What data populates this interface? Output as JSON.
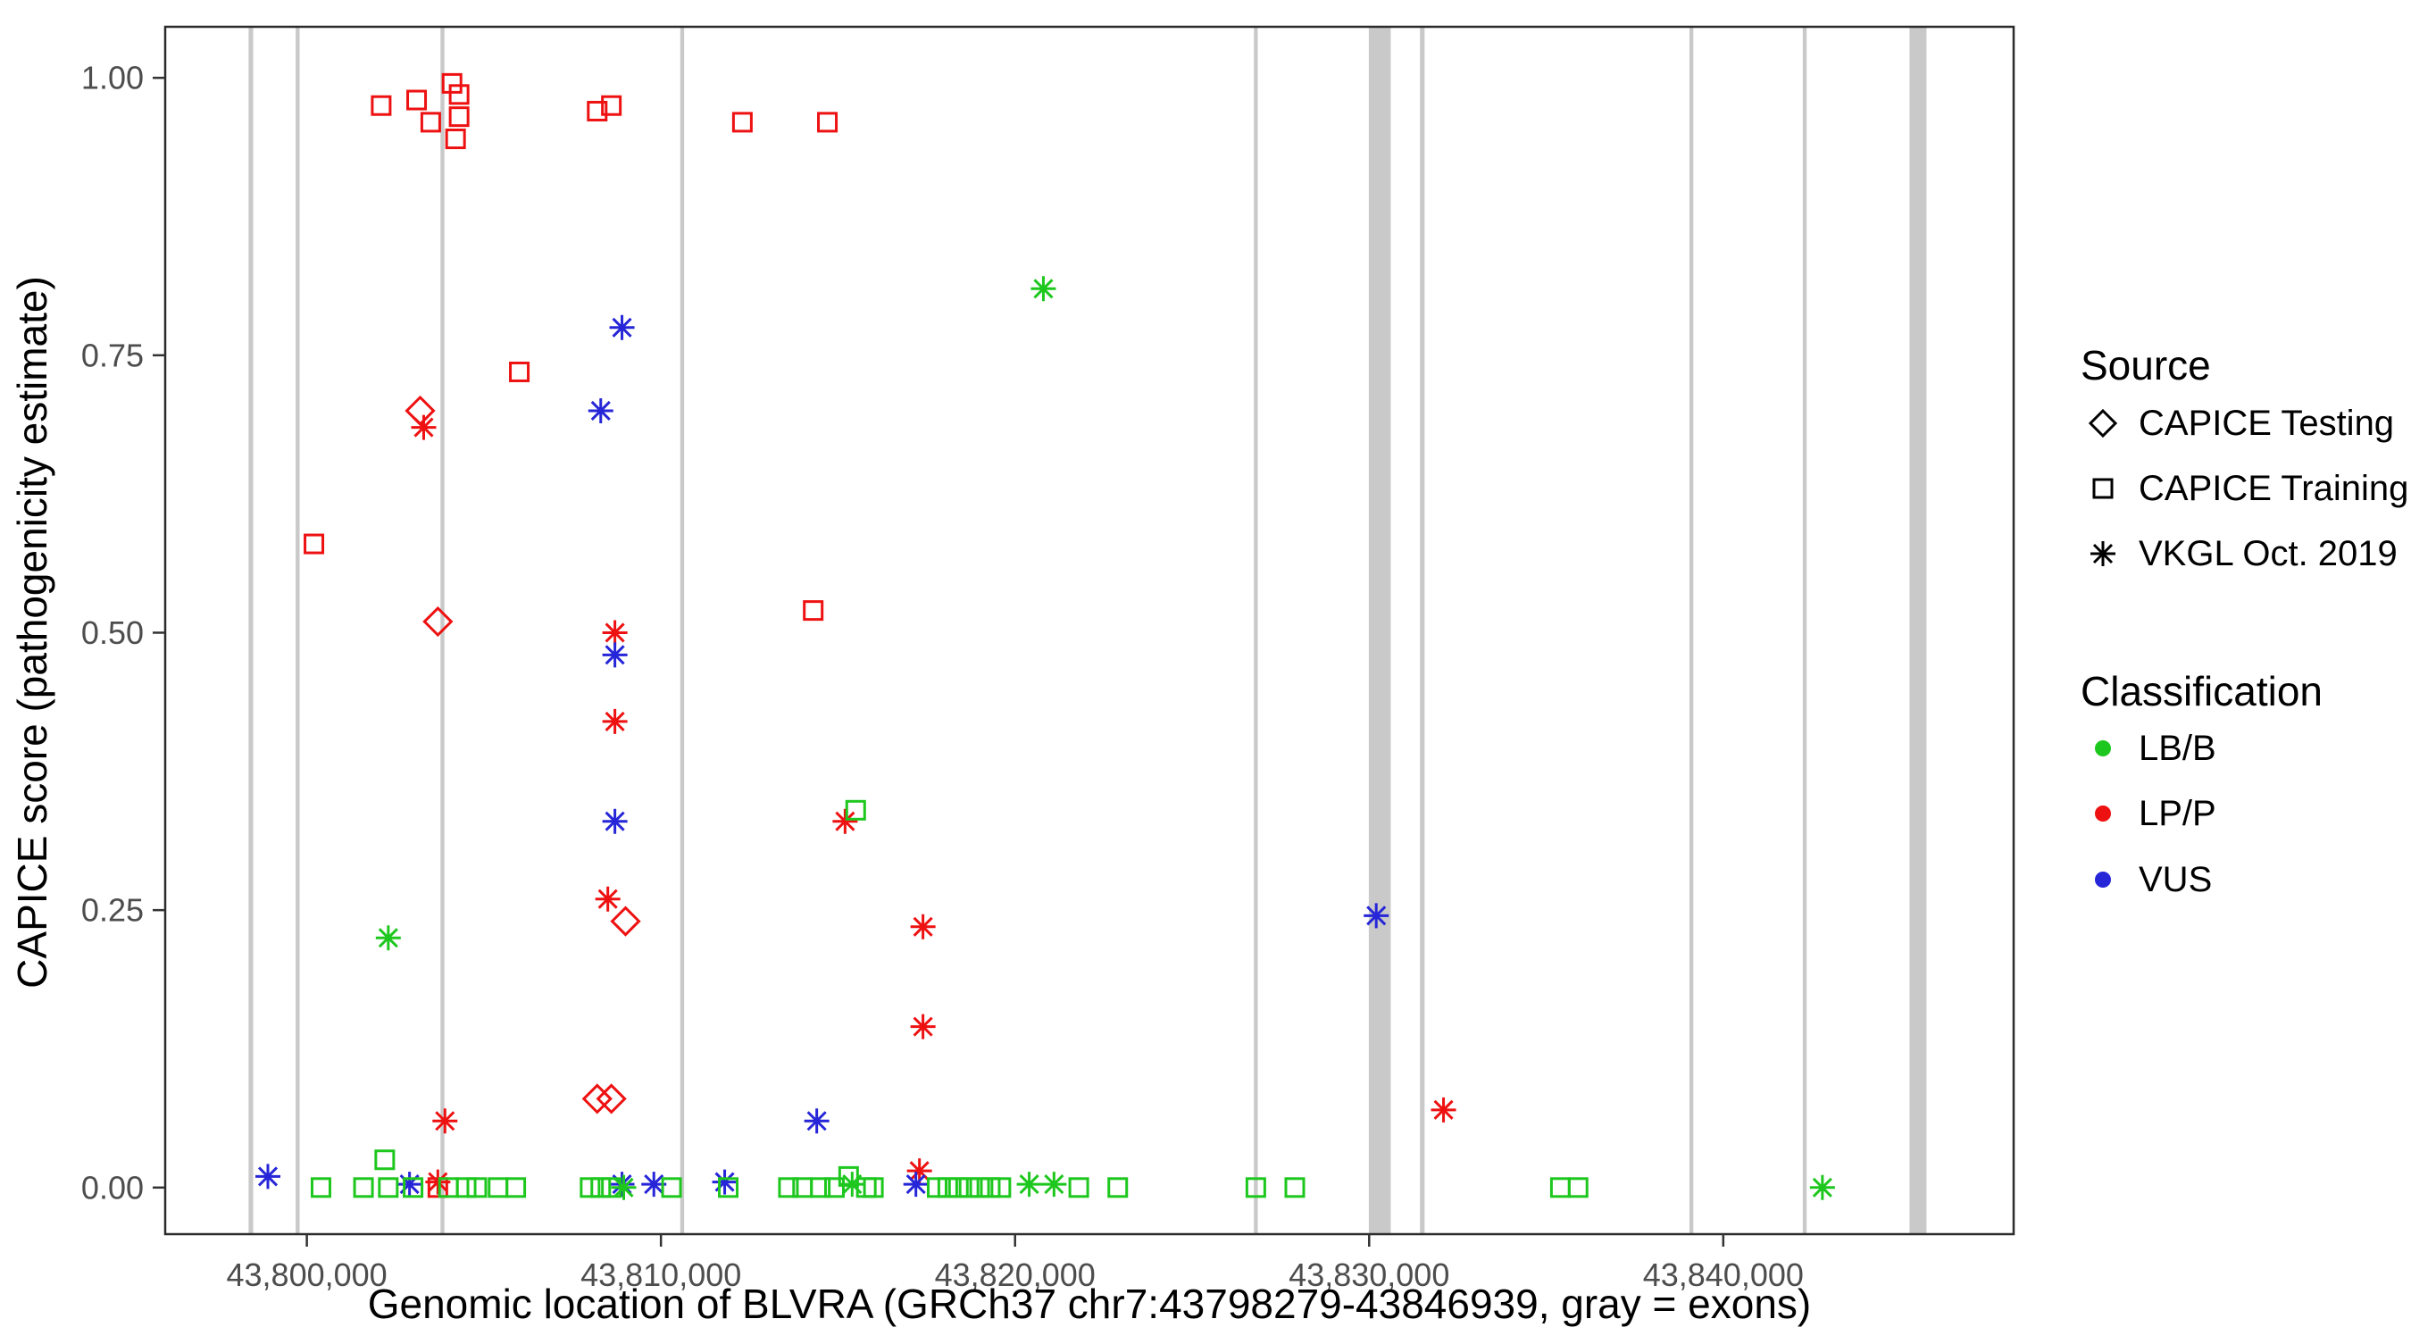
{
  "figure": {
    "background": "#ffffff",
    "panel_border_color": "#2b2b2b",
    "exon_color": "#c9c9c9",
    "tick_color": "#333333",
    "tick_label_color": "#4d4d4d"
  },
  "axes": {
    "x_title": "Genomic location of BLVRA (GRCh37 chr7:43798279-43846939, gray = exons)",
    "y_title": "CAPICE score (pathogenicity estimate)"
  },
  "legend": {
    "source_title": "Source",
    "source_items": [
      {
        "label": "CAPICE Testing",
        "shape": "diamond-open"
      },
      {
        "label": "CAPICE Training",
        "shape": "square-open"
      },
      {
        "label": "VKGL Oct. 2019",
        "shape": "asterisk"
      }
    ],
    "classification_title": "Classification",
    "classification_items": [
      {
        "label": "LB/B",
        "color": "#1ec71e"
      },
      {
        "label": "LP/P",
        "color": "#ee1111"
      },
      {
        "label": "VUS",
        "color": "#2626d8"
      }
    ]
  },
  "chart_data": {
    "type": "scatter",
    "title": "",
    "xlabel": "Genomic location of BLVRA (GRCh37 chr7:43798279-43846939, gray = exons)",
    "ylabel": "CAPICE score (pathogenicity estimate)",
    "xlim": [
      43796000,
      43848200
    ],
    "ylim": [
      -0.042,
      1.046
    ],
    "x_ticks": [
      43800000,
      43810000,
      43820000,
      43830000,
      43840000
    ],
    "x_tick_labels": [
      "43,800,000",
      "43,810,000",
      "43,820,000",
      "43,830,000",
      "43,840,000"
    ],
    "y_ticks": [
      0,
      0.25,
      0.5,
      0.75,
      1
    ],
    "y_tick_labels": [
      "0.00",
      "0.25",
      "0.50",
      "0.75",
      "1.00"
    ],
    "grid": false,
    "legend_position": "right",
    "source_shapes": {
      "testing": "diamond-open",
      "training": "square-open",
      "vkgl": "asterisk"
    },
    "source_labels": {
      "testing": "CAPICE Testing",
      "training": "CAPICE Training",
      "vkgl": "VKGL Oct. 2019"
    },
    "class_colors": {
      "LB/B": "#1ec71e",
      "LP/P": "#ee1111",
      "VUS": "#2626d8"
    },
    "exons": [
      [
        43798420,
        130
      ],
      [
        43799740,
        110
      ],
      [
        43803830,
        110
      ],
      [
        43810600,
        110
      ],
      [
        43826800,
        110
      ],
      [
        43830300,
        620
      ],
      [
        43831500,
        130
      ],
      [
        43839100,
        110
      ],
      [
        43842300,
        110
      ],
      [
        43845500,
        480
      ]
    ],
    "points": [
      [
        43802100,
        0.975,
        "training",
        "LP/P"
      ],
      [
        43803100,
        0.98,
        "training",
        "LP/P"
      ],
      [
        43803500,
        0.96,
        "training",
        "LP/P"
      ],
      [
        43804100,
        0.995,
        "training",
        "LP/P"
      ],
      [
        43804300,
        0.985,
        "training",
        "LP/P"
      ],
      [
        43804300,
        0.965,
        "training",
        "LP/P"
      ],
      [
        43804200,
        0.945,
        "training",
        "LP/P"
      ],
      [
        43808200,
        0.97,
        "training",
        "LP/P"
      ],
      [
        43808600,
        0.975,
        "training",
        "LP/P"
      ],
      [
        43812300,
        0.96,
        "training",
        "LP/P"
      ],
      [
        43814700,
        0.96,
        "training",
        "LP/P"
      ],
      [
        43806000,
        0.735,
        "training",
        "LP/P"
      ],
      [
        43800200,
        0.58,
        "training",
        "LP/P"
      ],
      [
        43814300,
        0.52,
        "training",
        "LP/P"
      ],
      [
        43803700,
        0.0,
        "training",
        "LP/P"
      ],
      [
        43803200,
        0.7,
        "testing",
        "LP/P"
      ],
      [
        43803700,
        0.51,
        "testing",
        "LP/P"
      ],
      [
        43809000,
        0.24,
        "testing",
        "LP/P"
      ],
      [
        43808200,
        0.08,
        "testing",
        "LP/P"
      ],
      [
        43808600,
        0.08,
        "testing",
        "LP/P"
      ],
      [
        43803300,
        0.685,
        "vkgl",
        "LP/P"
      ],
      [
        43808700,
        0.5,
        "vkgl",
        "LP/P"
      ],
      [
        43808700,
        0.42,
        "vkgl",
        "LP/P"
      ],
      [
        43808500,
        0.26,
        "vkgl",
        "LP/P"
      ],
      [
        43815200,
        0.33,
        "vkgl",
        "LP/P"
      ],
      [
        43817400,
        0.235,
        "vkgl",
        "LP/P"
      ],
      [
        43817400,
        0.145,
        "vkgl",
        "LP/P"
      ],
      [
        43832100,
        0.07,
        "vkgl",
        "LP/P"
      ],
      [
        43803900,
        0.06,
        "vkgl",
        "LP/P"
      ],
      [
        43817300,
        0.015,
        "vkgl",
        "LP/P"
      ],
      [
        43803700,
        0.005,
        "vkgl",
        "LP/P"
      ],
      [
        43808900,
        0.775,
        "vkgl",
        "VUS"
      ],
      [
        43808300,
        0.7,
        "vkgl",
        "VUS"
      ],
      [
        43808700,
        0.48,
        "vkgl",
        "VUS"
      ],
      [
        43808700,
        0.33,
        "vkgl",
        "VUS"
      ],
      [
        43830200,
        0.245,
        "vkgl",
        "VUS"
      ],
      [
        43814400,
        0.06,
        "vkgl",
        "VUS"
      ],
      [
        43798900,
        0.01,
        "vkgl",
        "VUS"
      ],
      [
        43802900,
        0.003,
        "vkgl",
        "VUS"
      ],
      [
        43808900,
        0.003,
        "vkgl",
        "VUS"
      ],
      [
        43809800,
        0.003,
        "vkgl",
        "VUS"
      ],
      [
        43811800,
        0.005,
        "vkgl",
        "VUS"
      ],
      [
        43817200,
        0.003,
        "vkgl",
        "VUS"
      ],
      [
        43820800,
        0.81,
        "vkgl",
        "LB/B"
      ],
      [
        43802300,
        0.225,
        "vkgl",
        "LB/B"
      ],
      [
        43808950,
        0.0,
        "vkgl",
        "LB/B"
      ],
      [
        43815400,
        0.003,
        "vkgl",
        "LB/B"
      ],
      [
        43820400,
        0.003,
        "vkgl",
        "LB/B"
      ],
      [
        43821100,
        0.003,
        "vkgl",
        "LB/B"
      ],
      [
        43842800,
        0.0,
        "vkgl",
        "LB/B"
      ],
      [
        43815500,
        0.34,
        "training",
        "LB/B"
      ],
      [
        43802200,
        0.025,
        "training",
        "LB/B"
      ],
      [
        43800400,
        0.0,
        "training",
        "LB/B"
      ],
      [
        43801600,
        0.0,
        "training",
        "LB/B"
      ],
      [
        43802300,
        0.0,
        "training",
        "LB/B"
      ],
      [
        43803000,
        0.0,
        "training",
        "LB/B"
      ],
      [
        43804000,
        0.0,
        "training",
        "LB/B"
      ],
      [
        43804500,
        0.0,
        "training",
        "LB/B"
      ],
      [
        43804800,
        0.0,
        "training",
        "LB/B"
      ],
      [
        43805400,
        0.0,
        "training",
        "LB/B"
      ],
      [
        43805900,
        0.0,
        "training",
        "LB/B"
      ],
      [
        43808000,
        0.0,
        "training",
        "LB/B"
      ],
      [
        43808300,
        0.0,
        "training",
        "LB/B"
      ],
      [
        43808600,
        0.0,
        "training",
        "LB/B"
      ],
      [
        43810300,
        0.0,
        "training",
        "LB/B"
      ],
      [
        43811900,
        0.0,
        "training",
        "LB/B"
      ],
      [
        43813600,
        0.0,
        "training",
        "LB/B"
      ],
      [
        43814000,
        0.0,
        "training",
        "LB/B"
      ],
      [
        43814500,
        0.0,
        "training",
        "LB/B"
      ],
      [
        43814900,
        0.0,
        "training",
        "LB/B"
      ],
      [
        43815300,
        0.01,
        "training",
        "LB/B"
      ],
      [
        43815800,
        0.0,
        "training",
        "LB/B"
      ],
      [
        43816000,
        0.0,
        "training",
        "LB/B"
      ],
      [
        43817800,
        0.0,
        "training",
        "LB/B"
      ],
      [
        43818100,
        0.0,
        "training",
        "LB/B"
      ],
      [
        43818400,
        0.0,
        "training",
        "LB/B"
      ],
      [
        43818700,
        0.0,
        "training",
        "LB/B"
      ],
      [
        43819000,
        0.0,
        "training",
        "LB/B"
      ],
      [
        43819300,
        0.0,
        "training",
        "LB/B"
      ],
      [
        43819600,
        0.0,
        "training",
        "LB/B"
      ],
      [
        43821800,
        0.0,
        "training",
        "LB/B"
      ],
      [
        43822900,
        0.0,
        "training",
        "LB/B"
      ],
      [
        43826800,
        0.0,
        "training",
        "LB/B"
      ],
      [
        43827900,
        0.0,
        "training",
        "LB/B"
      ],
      [
        43835400,
        0.0,
        "training",
        "LB/B"
      ],
      [
        43835900,
        0.0,
        "training",
        "LB/B"
      ]
    ]
  }
}
